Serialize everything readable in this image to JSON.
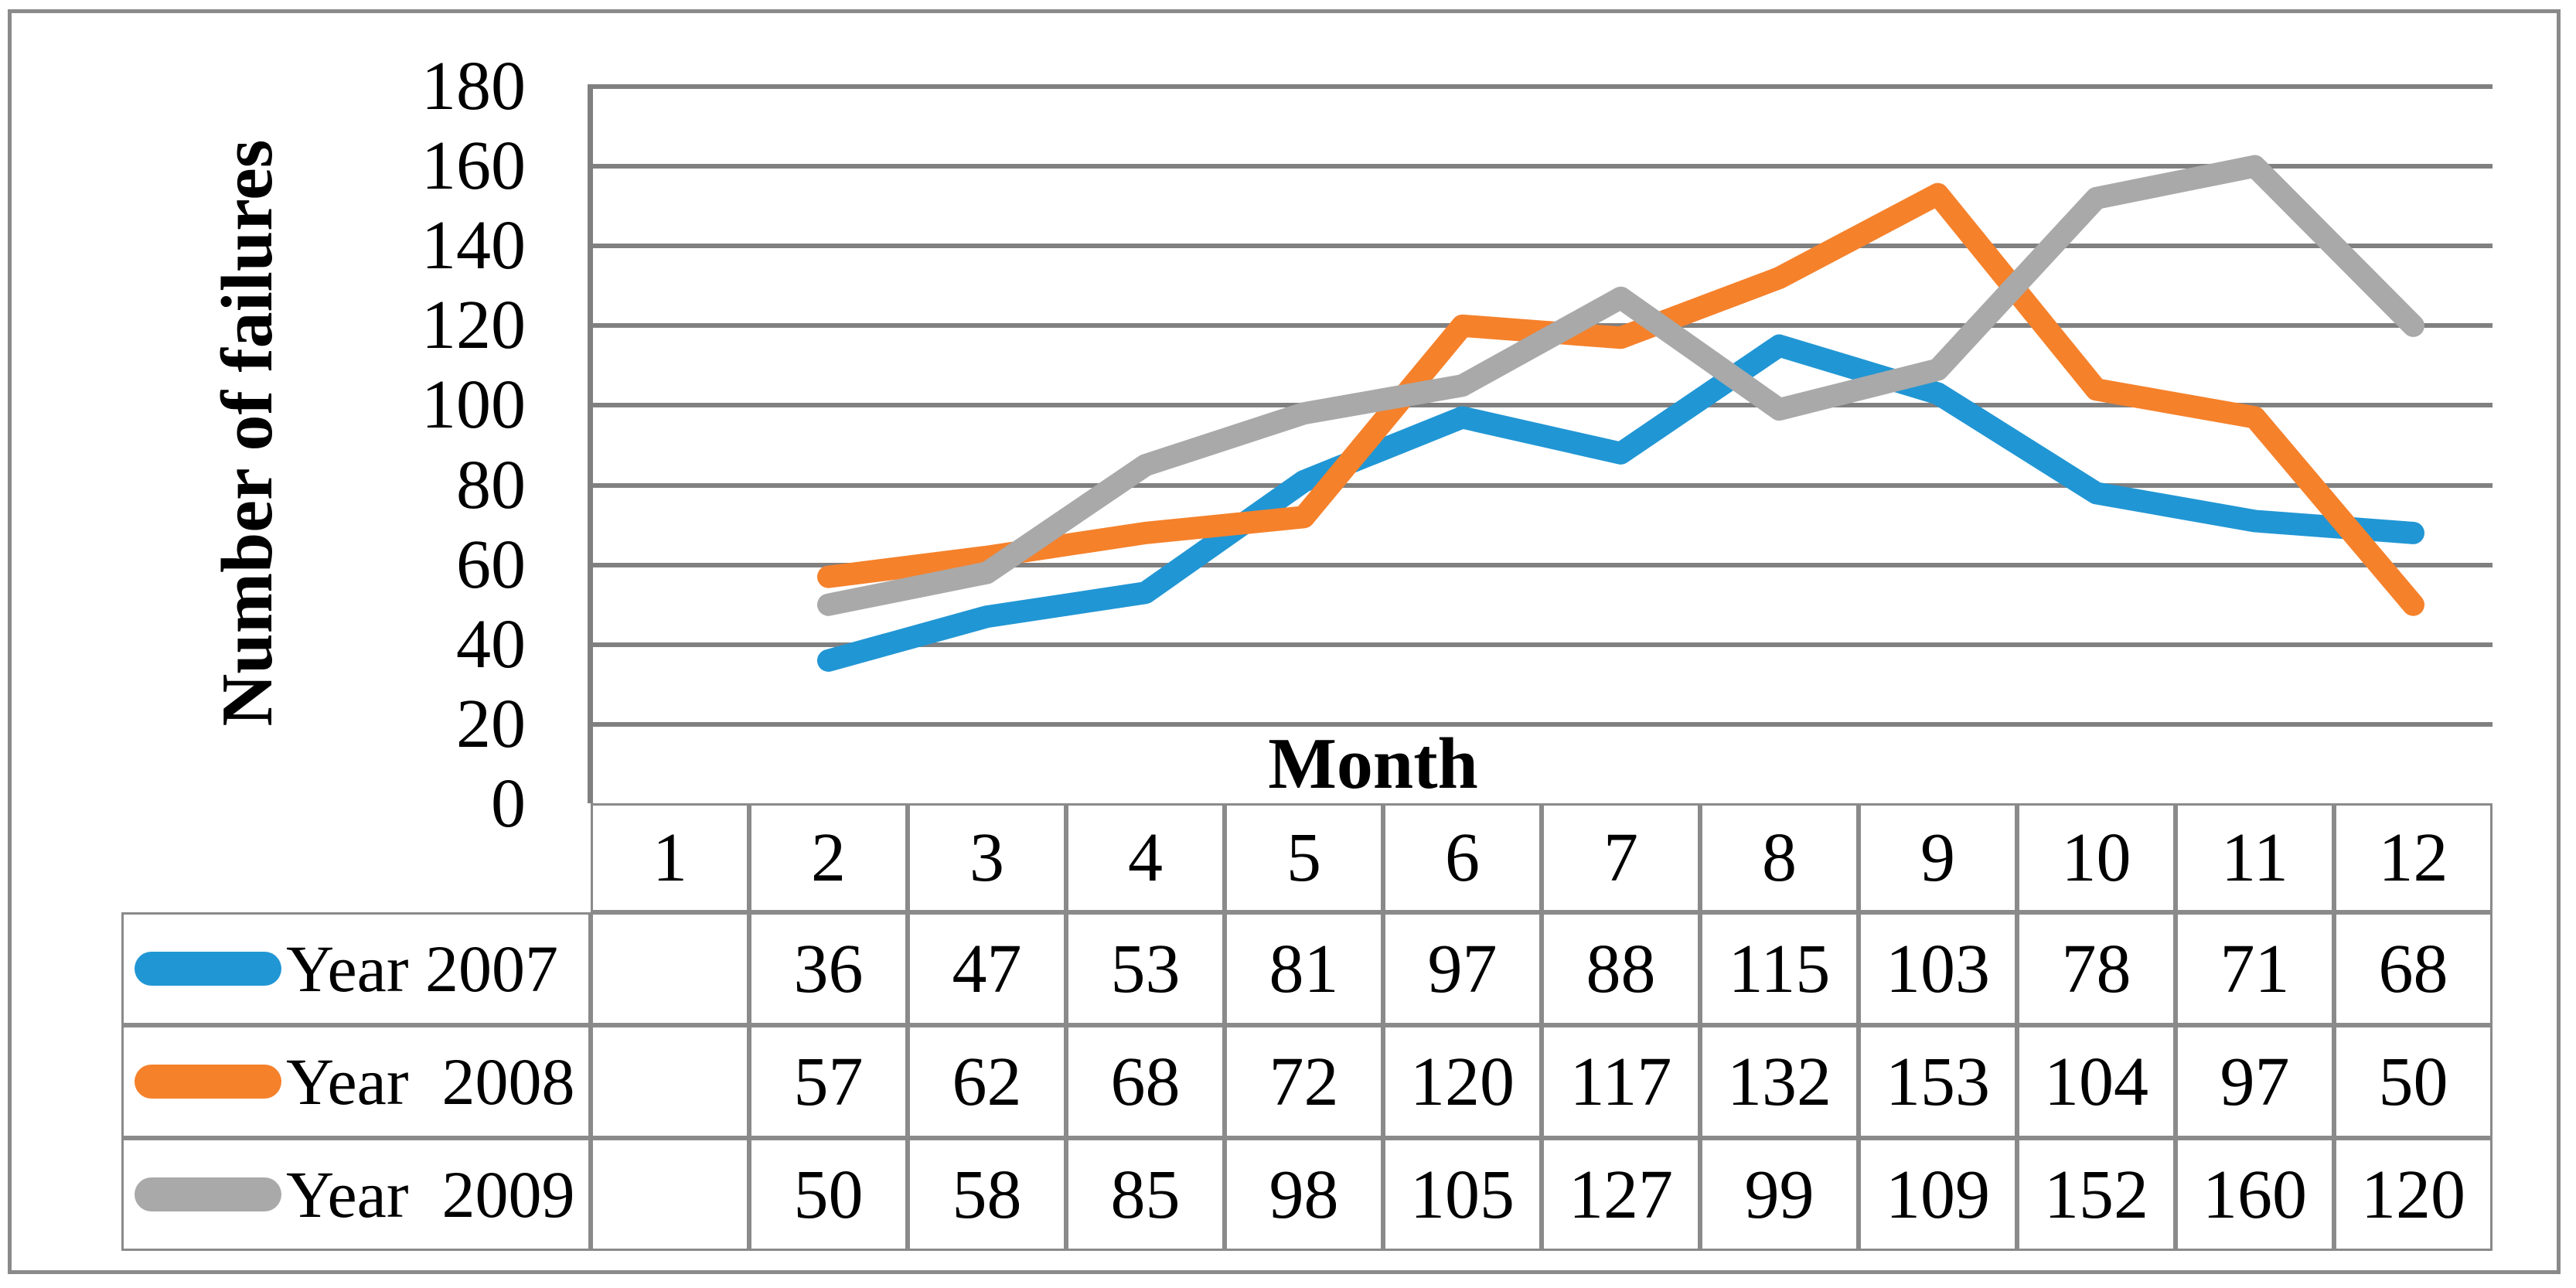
{
  "figure": {
    "y_axis_title": "Number of failures",
    "x_axis_title": "Month"
  },
  "chart_data": {
    "type": "line",
    "title": "",
    "xlabel": "Month",
    "ylabel": "Number of failures",
    "categories": [
      1,
      2,
      3,
      4,
      5,
      6,
      7,
      8,
      9,
      10,
      11,
      12
    ],
    "series": [
      {
        "name": "Year 2007",
        "color": "#2196D4",
        "values": [
          null,
          36,
          47,
          53,
          81,
          97,
          88,
          115,
          103,
          78,
          71,
          68
        ]
      },
      {
        "name": "Year  2008",
        "color": "#F5812B",
        "values": [
          null,
          57,
          62,
          68,
          72,
          120,
          117,
          132,
          153,
          104,
          97,
          50
        ]
      },
      {
        "name": "Year  2009",
        "color": "#A9A9A9",
        "values": [
          null,
          50,
          58,
          85,
          98,
          105,
          127,
          99,
          109,
          152,
          160,
          120
        ]
      }
    ],
    "ylim": [
      0,
      180
    ],
    "yticks": [
      180,
      160,
      140,
      120,
      100,
      80,
      60,
      40,
      20,
      0
    ],
    "grid": true,
    "legend_position": "left-of-data-table",
    "data_table_shown": true
  },
  "colors": {
    "grid": "#808080",
    "axis": "#808080",
    "table_border": "#8A8A8A",
    "figure_border": "#8A8A8A",
    "text": "#000000",
    "background": "#FFFFFF"
  }
}
